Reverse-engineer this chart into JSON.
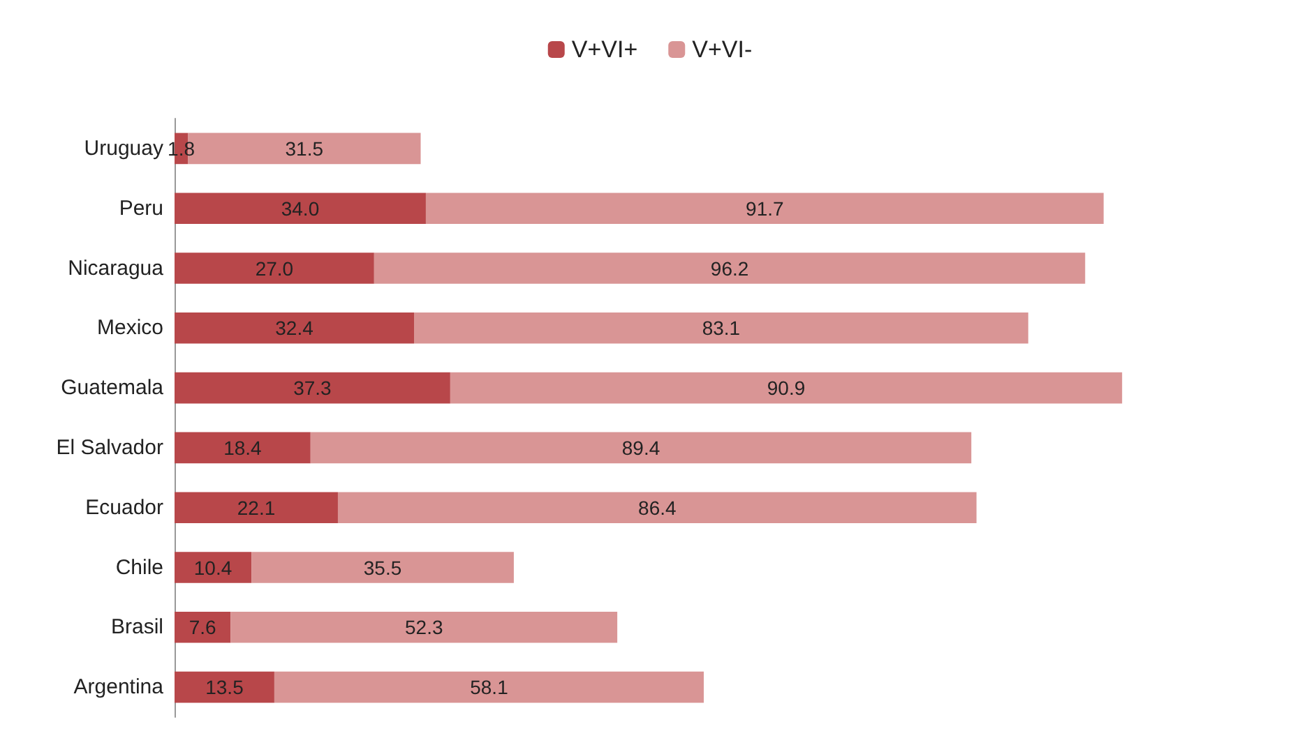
{
  "chart_data": {
    "type": "bar",
    "orientation": "horizontal",
    "stacked": true,
    "legend": "top",
    "categories": [
      "Uruguay",
      "Peru",
      "Nicaragua",
      "Mexico",
      "Guatemala",
      "El Salvador",
      "Ecuador",
      "Chile",
      "Brasil",
      "Argentina"
    ],
    "series": [
      {
        "name": "V+VI+",
        "color": "#b8474a",
        "values": [
          1.8,
          34.0,
          27.0,
          32.4,
          37.3,
          18.4,
          22.1,
          10.4,
          7.6,
          13.5
        ],
        "value_labels": [
          "1.8",
          "34.0",
          "27.0",
          "32.4",
          "37.3",
          "18.4",
          "22.1",
          "10.4",
          "7.6",
          "13.5"
        ]
      },
      {
        "name": "V+VI-",
        "color": "#d99595",
        "values": [
          31.5,
          91.7,
          96.2,
          83.1,
          90.9,
          89.4,
          86.4,
          35.5,
          52.3,
          58.1
        ],
        "value_labels": [
          "31.5",
          "91.7",
          "96.2",
          "83.1",
          "90.9",
          "89.4",
          "86.4",
          "35.5",
          "52.3",
          "58.1"
        ]
      }
    ]
  }
}
